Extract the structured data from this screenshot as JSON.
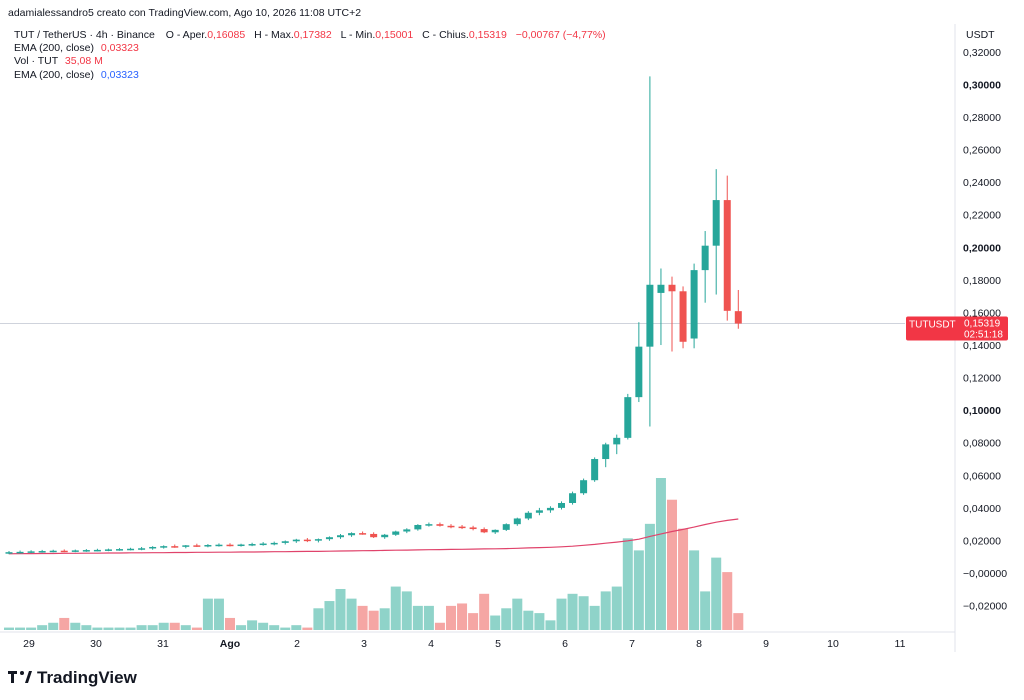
{
  "header": {
    "attribution": "adamialessandro5 creato con TradingView.com, Ago 10, 2026 11:08 UTC+2",
    "symbol": "TUT / TetherUS · 4h · Binance",
    "ohlc": [
      {
        "key": "O - Aper.",
        "value": "0,16085"
      },
      {
        "key": "H - Max.",
        "value": "0,17382"
      },
      {
        "key": "L - Min.",
        "value": "0,15001"
      },
      {
        "key": "C - Chius.",
        "value": "0,15319"
      }
    ],
    "change": "−0,00767 (−4,77%)",
    "ema1_label": "EMA (200, close)",
    "ema1_value": "0,03323",
    "vol_label": "Vol · TUT",
    "vol_value": "35,08 M",
    "ema2_label": "EMA (200, close)",
    "ema2_value": "0,03323"
  },
  "price_scale": {
    "currency": "USDT",
    "ticks": [
      "0,32000",
      "0,30000",
      "0,28000",
      "0,26000",
      "0,24000",
      "0,22000",
      "0,20000",
      "0,18000",
      "0,16000",
      "0,14000",
      "0,12000",
      "0,10000",
      "0,08000",
      "0,06000",
      "0,04000",
      "0,02000",
      "−0,00000",
      "−0,02000"
    ],
    "bold_ticks": [
      "0,30000",
      "0,20000",
      "0,10000"
    ],
    "last_price_badge": {
      "symbol": "TUTUSDT",
      "price": "0,15319",
      "countdown": "02:51:18"
    }
  },
  "time_scale": {
    "labels": [
      "29",
      "30",
      "31",
      "Ago",
      "2",
      "3",
      "4",
      "5",
      "6",
      "7",
      "8",
      "9",
      "10",
      "11"
    ],
    "bold_labels": [
      "Ago"
    ]
  },
  "branding": {
    "logo_text": "TradingView"
  },
  "colors": {
    "up": "#26a69a",
    "down": "#ef5350",
    "vol_up": "#8fd3c9",
    "vol_down": "#f5a6a4",
    "ema": "#e0436b",
    "badge": "#f23645"
  },
  "chart_data": {
    "type": "candlestick",
    "interval": "4h",
    "symbol": "TUTUSDT",
    "y_unit": "USDT",
    "ylim": [
      -0.027,
      0.323
    ],
    "x_labels": [
      "29",
      "30",
      "31",
      "Ago",
      "2",
      "3",
      "4",
      "5",
      "6",
      "7",
      "8",
      "9",
      "10",
      "11"
    ],
    "candles": [
      {
        "o": 0.0125,
        "h": 0.0135,
        "l": 0.0115,
        "c": 0.0128
      },
      {
        "o": 0.0128,
        "h": 0.0138,
        "l": 0.012,
        "c": 0.013
      },
      {
        "o": 0.013,
        "h": 0.014,
        "l": 0.0122,
        "c": 0.0133
      },
      {
        "o": 0.0133,
        "h": 0.0142,
        "l": 0.0125,
        "c": 0.0135
      },
      {
        "o": 0.0135,
        "h": 0.0143,
        "l": 0.0127,
        "c": 0.0137
      },
      {
        "o": 0.0137,
        "h": 0.0145,
        "l": 0.0128,
        "c": 0.0136
      },
      {
        "o": 0.0136,
        "h": 0.0144,
        "l": 0.0128,
        "c": 0.0139
      },
      {
        "o": 0.0139,
        "h": 0.0147,
        "l": 0.013,
        "c": 0.0141
      },
      {
        "o": 0.0141,
        "h": 0.0149,
        "l": 0.0133,
        "c": 0.0142
      },
      {
        "o": 0.0142,
        "h": 0.015,
        "l": 0.0134,
        "c": 0.0145
      },
      {
        "o": 0.0145,
        "h": 0.0153,
        "l": 0.0137,
        "c": 0.0147
      },
      {
        "o": 0.0147,
        "h": 0.0155,
        "l": 0.0139,
        "c": 0.0149
      },
      {
        "o": 0.0149,
        "h": 0.016,
        "l": 0.014,
        "c": 0.0152
      },
      {
        "o": 0.0152,
        "h": 0.0165,
        "l": 0.0143,
        "c": 0.016
      },
      {
        "o": 0.016,
        "h": 0.017,
        "l": 0.015,
        "c": 0.0165
      },
      {
        "o": 0.0165,
        "h": 0.0175,
        "l": 0.0155,
        "c": 0.0163
      },
      {
        "o": 0.0163,
        "h": 0.0172,
        "l": 0.0152,
        "c": 0.017
      },
      {
        "o": 0.017,
        "h": 0.018,
        "l": 0.016,
        "c": 0.0168
      },
      {
        "o": 0.0168,
        "h": 0.0178,
        "l": 0.0158,
        "c": 0.0172
      },
      {
        "o": 0.0172,
        "h": 0.0182,
        "l": 0.0162,
        "c": 0.0174
      },
      {
        "o": 0.0174,
        "h": 0.0183,
        "l": 0.0163,
        "c": 0.0171
      },
      {
        "o": 0.0171,
        "h": 0.018,
        "l": 0.0162,
        "c": 0.0175
      },
      {
        "o": 0.0175,
        "h": 0.0186,
        "l": 0.0165,
        "c": 0.0178
      },
      {
        "o": 0.0178,
        "h": 0.019,
        "l": 0.0168,
        "c": 0.0181
      },
      {
        "o": 0.0181,
        "h": 0.0193,
        "l": 0.017,
        "c": 0.0185
      },
      {
        "o": 0.0185,
        "h": 0.02,
        "l": 0.0175,
        "c": 0.0195
      },
      {
        "o": 0.0195,
        "h": 0.021,
        "l": 0.0185,
        "c": 0.0205
      },
      {
        "o": 0.0205,
        "h": 0.0215,
        "l": 0.019,
        "c": 0.02
      },
      {
        "o": 0.02,
        "h": 0.0212,
        "l": 0.0188,
        "c": 0.0208
      },
      {
        "o": 0.0208,
        "h": 0.0225,
        "l": 0.0198,
        "c": 0.022
      },
      {
        "o": 0.022,
        "h": 0.024,
        "l": 0.021,
        "c": 0.0232
      },
      {
        "o": 0.0232,
        "h": 0.025,
        "l": 0.0222,
        "c": 0.0245
      },
      {
        "o": 0.0245,
        "h": 0.0255,
        "l": 0.0235,
        "c": 0.024
      },
      {
        "o": 0.024,
        "h": 0.025,
        "l": 0.0215,
        "c": 0.022
      },
      {
        "o": 0.022,
        "h": 0.024,
        "l": 0.021,
        "c": 0.0235
      },
      {
        "o": 0.0235,
        "h": 0.026,
        "l": 0.0228,
        "c": 0.0255
      },
      {
        "o": 0.0255,
        "h": 0.0275,
        "l": 0.0245,
        "c": 0.0268
      },
      {
        "o": 0.0268,
        "h": 0.03,
        "l": 0.026,
        "c": 0.0295
      },
      {
        "o": 0.0295,
        "h": 0.031,
        "l": 0.0285,
        "c": 0.03
      },
      {
        "o": 0.03,
        "h": 0.031,
        "l": 0.0285,
        "c": 0.029
      },
      {
        "o": 0.029,
        "h": 0.03,
        "l": 0.0275,
        "c": 0.0285
      },
      {
        "o": 0.0285,
        "h": 0.0295,
        "l": 0.027,
        "c": 0.028
      },
      {
        "o": 0.028,
        "h": 0.029,
        "l": 0.0262,
        "c": 0.027
      },
      {
        "o": 0.027,
        "h": 0.028,
        "l": 0.0245,
        "c": 0.025
      },
      {
        "o": 0.025,
        "h": 0.0268,
        "l": 0.024,
        "c": 0.0265
      },
      {
        "o": 0.0265,
        "h": 0.0305,
        "l": 0.0258,
        "c": 0.03
      },
      {
        "o": 0.03,
        "h": 0.034,
        "l": 0.029,
        "c": 0.0335
      },
      {
        "o": 0.0335,
        "h": 0.038,
        "l": 0.0325,
        "c": 0.037
      },
      {
        "o": 0.037,
        "h": 0.04,
        "l": 0.0355,
        "c": 0.0385
      },
      {
        "o": 0.0385,
        "h": 0.041,
        "l": 0.037,
        "c": 0.04
      },
      {
        "o": 0.04,
        "h": 0.044,
        "l": 0.039,
        "c": 0.043
      },
      {
        "o": 0.043,
        "h": 0.05,
        "l": 0.042,
        "c": 0.049
      },
      {
        "o": 0.049,
        "h": 0.058,
        "l": 0.048,
        "c": 0.057
      },
      {
        "o": 0.057,
        "h": 0.071,
        "l": 0.056,
        "c": 0.07
      },
      {
        "o": 0.07,
        "h": 0.08,
        "l": 0.065,
        "c": 0.079
      },
      {
        "o": 0.079,
        "h": 0.085,
        "l": 0.073,
        "c": 0.083
      },
      {
        "o": 0.083,
        "h": 0.11,
        "l": 0.082,
        "c": 0.108
      },
      {
        "o": 0.108,
        "h": 0.154,
        "l": 0.105,
        "c": 0.139
      },
      {
        "o": 0.139,
        "h": 0.305,
        "l": 0.09,
        "c": 0.177
      },
      {
        "o": 0.172,
        "h": 0.187,
        "l": 0.14,
        "c": 0.177
      },
      {
        "o": 0.177,
        "h": 0.182,
        "l": 0.136,
        "c": 0.173
      },
      {
        "o": 0.173,
        "h": 0.176,
        "l": 0.138,
        "c": 0.142
      },
      {
        "o": 0.144,
        "h": 0.19,
        "l": 0.138,
        "c": 0.186
      },
      {
        "o": 0.186,
        "h": 0.21,
        "l": 0.166,
        "c": 0.201
      },
      {
        "o": 0.201,
        "h": 0.248,
        "l": 0.171,
        "c": 0.229
      },
      {
        "o": 0.229,
        "h": 0.244,
        "l": 0.155,
        "c": 0.161
      },
      {
        "o": 0.1608,
        "h": 0.1738,
        "l": 0.15,
        "c": 0.1532
      }
    ],
    "volume_scale_max": 0.063,
    "volume": [
      0.001,
      0.001,
      0.001,
      0.002,
      0.003,
      0.005,
      0.003,
      0.002,
      0.001,
      0.001,
      0.001,
      0.001,
      0.002,
      0.002,
      0.003,
      0.003,
      0.002,
      0.001,
      0.013,
      0.013,
      0.005,
      0.002,
      0.004,
      0.003,
      0.002,
      0.001,
      0.002,
      0.001,
      0.009,
      0.012,
      0.017,
      0.013,
      0.01,
      0.008,
      0.009,
      0.018,
      0.016,
      0.01,
      0.01,
      0.003,
      0.01,
      0.011,
      0.007,
      0.015,
      0.006,
      0.009,
      0.013,
      0.008,
      0.007,
      0.004,
      0.013,
      0.015,
      0.014,
      0.01,
      0.016,
      0.018,
      0.038,
      0.033,
      0.044,
      0.063,
      0.054,
      0.042,
      0.033,
      0.016,
      0.03,
      0.024,
      0.007
    ],
    "ema200": [
      0.0118,
      0.0119,
      0.0119,
      0.012,
      0.012,
      0.0121,
      0.0121,
      0.0122,
      0.0122,
      0.0123,
      0.0123,
      0.0124,
      0.0124,
      0.0125,
      0.0125,
      0.0126,
      0.0126,
      0.0127,
      0.0127,
      0.0128,
      0.0128,
      0.0129,
      0.0129,
      0.013,
      0.0131,
      0.0131,
      0.0132,
      0.0133,
      0.0133,
      0.0134,
      0.0135,
      0.0136,
      0.0137,
      0.0138,
      0.0139,
      0.014,
      0.0141,
      0.0142,
      0.0143,
      0.0144,
      0.0145,
      0.0146,
      0.0147,
      0.0148,
      0.0149,
      0.015,
      0.0152,
      0.0154,
      0.0156,
      0.0158,
      0.0161,
      0.0165,
      0.017,
      0.0176,
      0.0183,
      0.019,
      0.0198,
      0.0208,
      0.0225,
      0.024,
      0.0255,
      0.0268,
      0.0282,
      0.0298,
      0.0312,
      0.0323,
      0.0332
    ]
  }
}
